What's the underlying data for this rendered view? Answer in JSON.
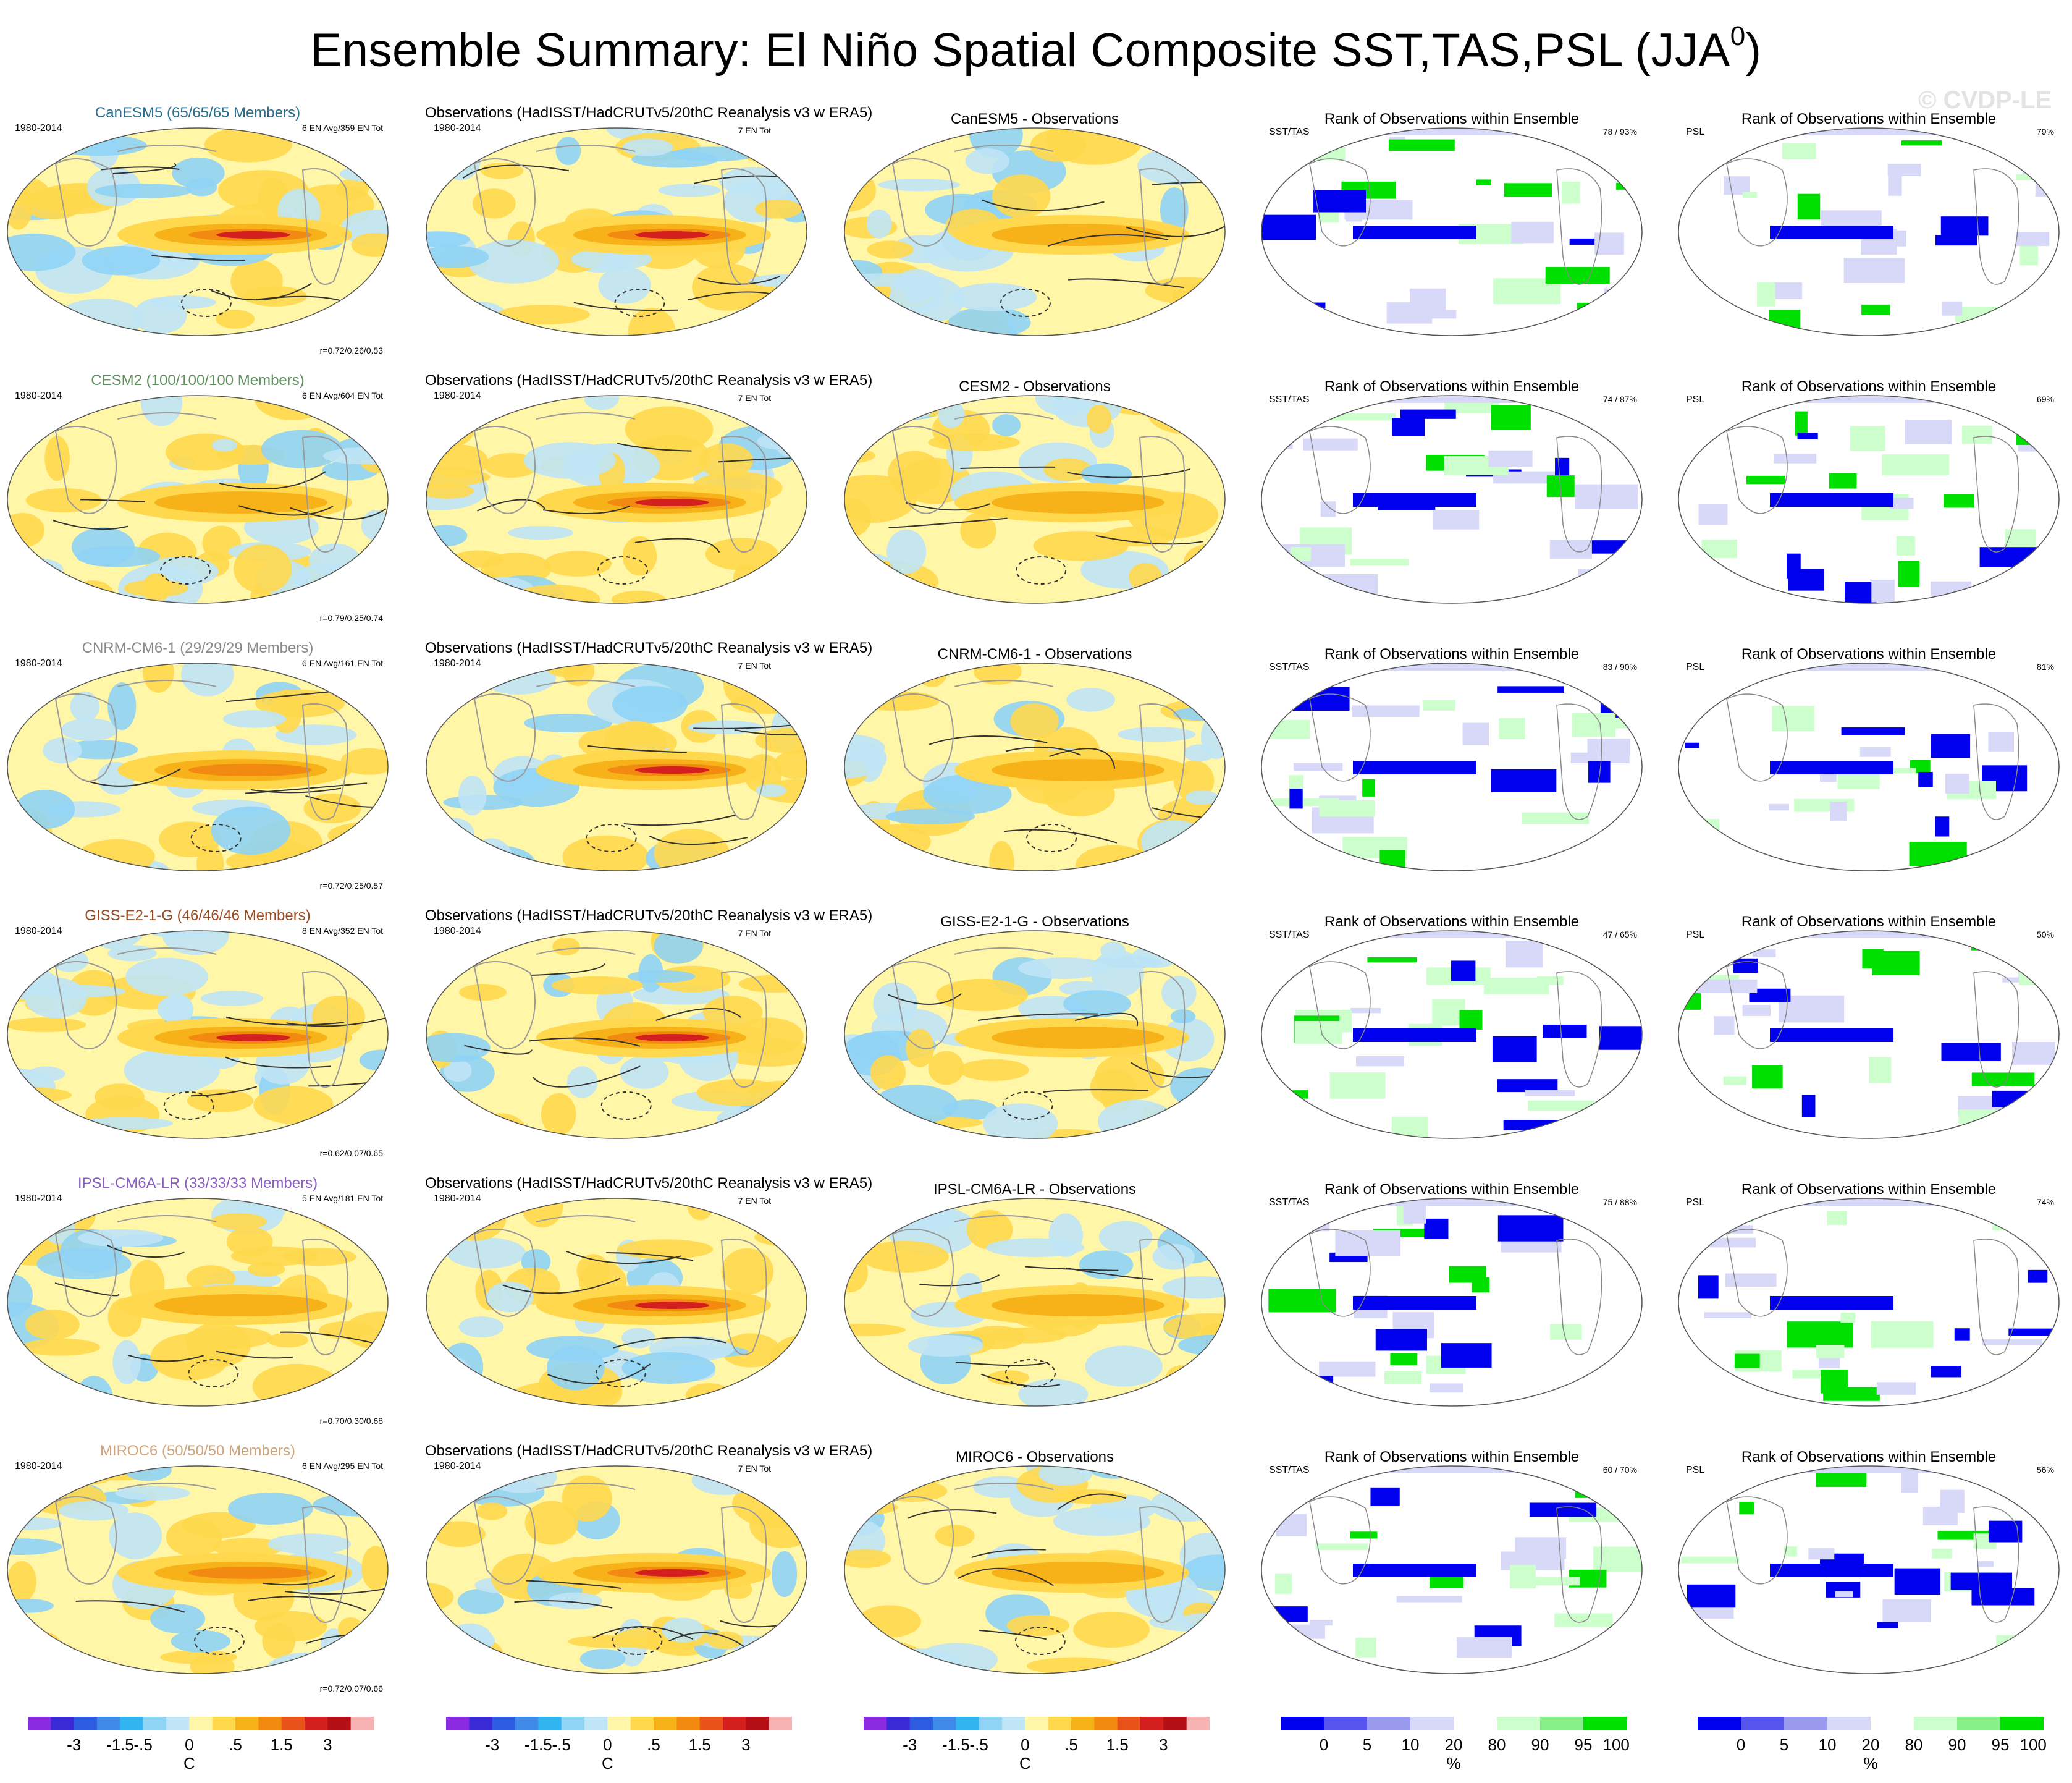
{
  "title": "Ensemble Summary: El Niño Spatial Composite SST,TAS,PSL (JJA",
  "title_superscript": "0",
  "title_close": ")",
  "watermark": "© CVDP-LE",
  "obs_title": "Observations (HadISST/HadCRUTv5/20thC Reanalysis v3 w ERA5)",
  "period": "1980-2014",
  "obs_count": "7 EN Tot",
  "rank_title": "Rank of Observations within Ensemble",
  "rank_sst_label": "SST/TAS",
  "rank_psl_label": "PSL",
  "rows": [
    {
      "model": "CanESM5",
      "members": "CanESM5 (65/65/65 Members)",
      "color": "#2a6f8f",
      "en": "6 EN Avg/359 EN Tot",
      "r": "r=0.72/0.26/0.53",
      "diff": "CanESM5 - Observations",
      "rank_sst": "78 / 93%",
      "rank_psl": "79%"
    },
    {
      "model": "CESM2",
      "members": "CESM2 (100/100/100 Members)",
      "color": "#5f8f5f",
      "en": "6 EN Avg/604 EN Tot",
      "r": "r=0.79/0.25/0.74",
      "diff": "CESM2 - Observations",
      "rank_sst": "74 / 87%",
      "rank_psl": "69%"
    },
    {
      "model": "CNRM-CM6-1",
      "members": "CNRM-CM6-1 (29/29/29 Members)",
      "color": "#8a8a8a",
      "en": "6 EN Avg/161 EN Tot",
      "r": "r=0.72/0.25/0.57",
      "diff": "CNRM-CM6-1 - Observations",
      "rank_sst": "83 / 90%",
      "rank_psl": "81%"
    },
    {
      "model": "GISS-E2-1-G",
      "members": "GISS-E2-1-G (46/46/46 Members)",
      "color": "#9a4a1e",
      "en": "8 EN Avg/352 EN Tot",
      "r": "r=0.62/0.07/0.65",
      "diff": "GISS-E2-1-G - Observations",
      "rank_sst": "47 / 65%",
      "rank_psl": "50%"
    },
    {
      "model": "IPSL-CM6A-LR",
      "members": "IPSL-CM6A-LR (33/33/33 Members)",
      "color": "#8a5fc0",
      "en": "5 EN Avg/181 EN Tot",
      "r": "r=0.70/0.30/0.68",
      "diff": "IPSL-CM6A-LR - Observations",
      "rank_sst": "75 / 88%",
      "rank_psl": "74%"
    },
    {
      "model": "MIROC6",
      "members": "MIROC6 (50/50/50 Members)",
      "color": "#cfa57a",
      "en": "6 EN Avg/295 EN Tot",
      "r": "r=0.72/0.07/0.66",
      "diff": "MIROC6 - Observations",
      "rank_sst": "60 / 70%",
      "rank_psl": "56%"
    }
  ],
  "chart_data": {
    "type": "heatmap",
    "title": "Ensemble Summary: El Niño Spatial Composite SST,TAS,PSL (JJA0)",
    "panels_per_row": [
      "Ensemble mean composite",
      "Observations composite",
      "Ensemble mean - Observations",
      "Rank SST/TAS",
      "Rank PSL"
    ],
    "temperature_colorbar": {
      "unit": "C",
      "tick_labels": [
        "-3",
        "-1.5",
        "-.5",
        "0",
        ".5",
        "1.5",
        "3"
      ],
      "colors": [
        "#8a2be2",
        "#3a2ad6",
        "#2e5ce0",
        "#3d8ae8",
        "#31b4f0",
        "#8fd3f5",
        "#bfe4f5",
        "#fff6a8",
        "#ffd84d",
        "#f7b21a",
        "#f28a12",
        "#e8531a",
        "#d41f1f",
        "#b30f14",
        "#f7b3b3"
      ]
    },
    "rank_colorbar": {
      "unit": "%",
      "tick_labels": [
        "0",
        "5",
        "10",
        "20",
        "80",
        "90",
        "95",
        "100"
      ],
      "colors": [
        "#0000ee",
        "#5555ee",
        "#9999ee",
        "#d8d8f8",
        "#ffffff",
        "#ccffcc",
        "#88f088",
        "#00e000"
      ]
    }
  }
}
